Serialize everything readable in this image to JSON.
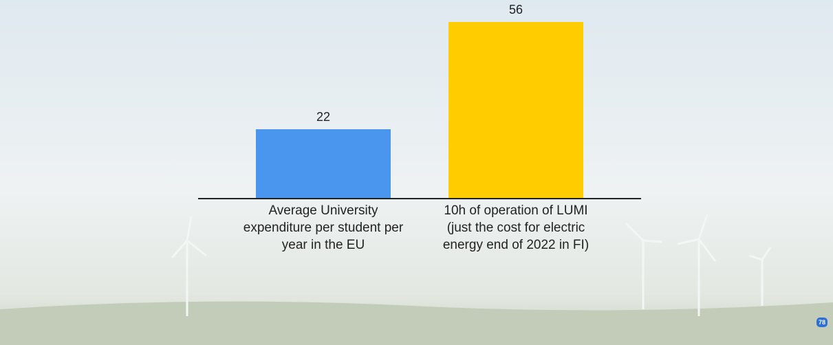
{
  "chart_data": {
    "type": "bar",
    "categories": [
      "Average University expenditure per student per year in the EU",
      "10h of operation of LUMI (just the cost for electric energy end of 2022 in FI)"
    ],
    "values": [
      22,
      56
    ],
    "colors": [
      "#4a96ee",
      "#ffcc00"
    ]
  },
  "participant_count": 78
}
